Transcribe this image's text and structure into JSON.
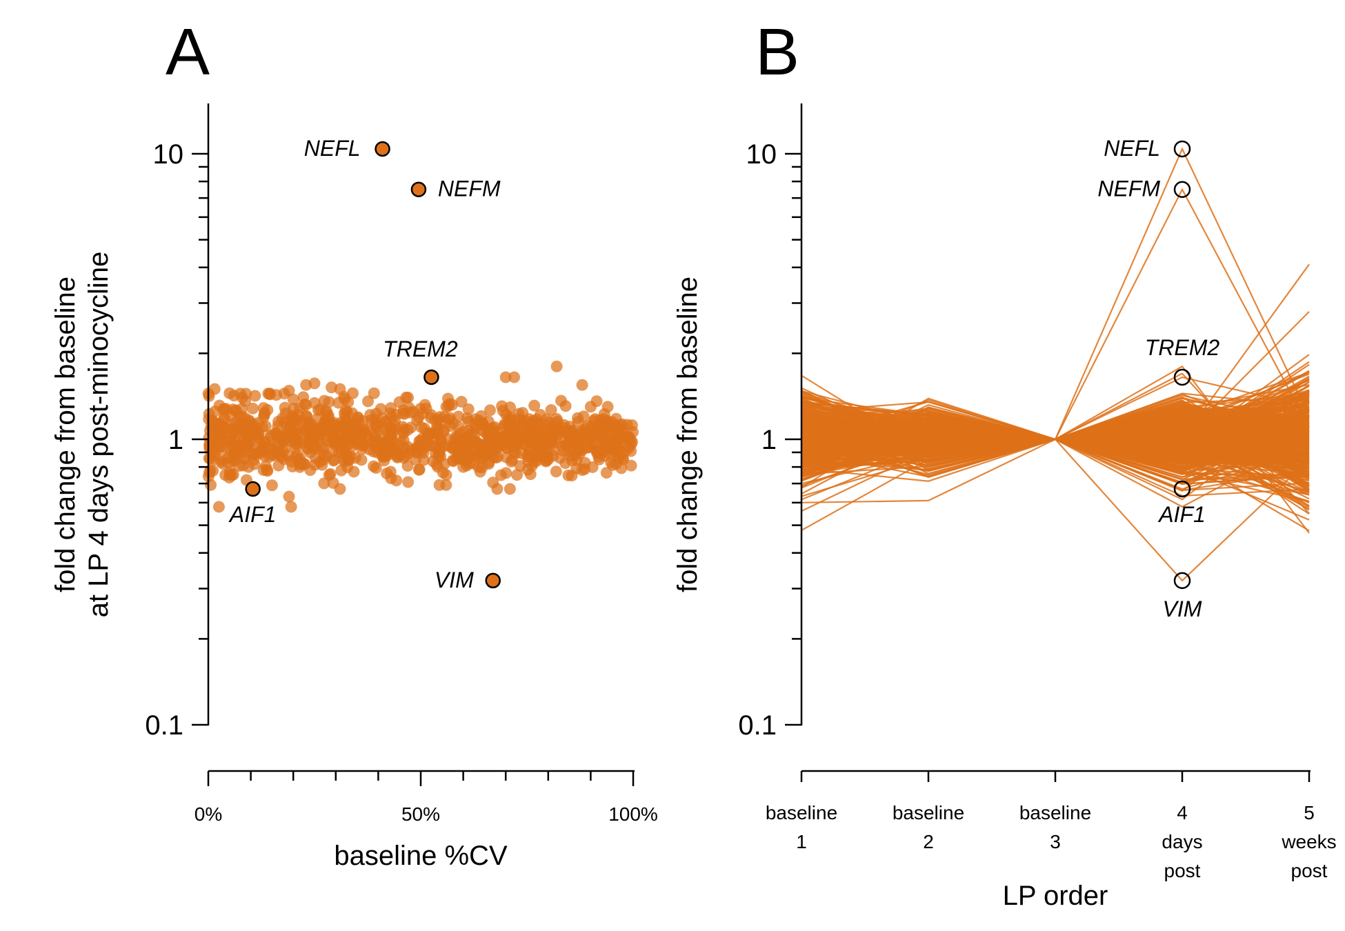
{
  "chart_data": [
    {
      "panel_letter": "A",
      "type": "scatter",
      "xlabel": "baseline %CV",
      "ylabel_lines": [
        "fold change from baseline",
        "at LP 4 days post-minocycline"
      ],
      "yscale": "log",
      "ylim": [
        0.1,
        15
      ],
      "yticks": [
        0.1,
        1,
        10
      ],
      "ytick_labels": [
        "0.1",
        "1",
        "10"
      ],
      "xlim": [
        0,
        100
      ],
      "xticks": [
        0,
        10,
        20,
        30,
        40,
        50,
        60,
        70,
        80,
        90,
        100
      ],
      "xtick_labels": [
        {
          "x": 0,
          "label": "0%"
        },
        {
          "x": 50,
          "label": "50%"
        },
        {
          "x": 100,
          "label": "100%"
        }
      ],
      "color": "#de7119",
      "labeled_points": [
        {
          "gene": "NEFL",
          "x": 41,
          "y": 10.4
        },
        {
          "gene": "NEFM",
          "x": 49.5,
          "y": 7.5
        },
        {
          "gene": "TREM2",
          "x": 52.5,
          "y": 1.65
        },
        {
          "gene": "AIF1",
          "x": 10.5,
          "y": 0.67
        },
        {
          "gene": "VIM",
          "x": 67,
          "y": 0.32
        }
      ],
      "outlier_points": [
        {
          "x": 1.5,
          "y": 1.5
        },
        {
          "x": 5,
          "y": 1.45
        },
        {
          "x": 8,
          "y": 1.4
        },
        {
          "x": 11,
          "y": 1.42
        },
        {
          "x": 16,
          "y": 1.43
        },
        {
          "x": 19,
          "y": 1.48
        },
        {
          "x": 20,
          "y": 1.38
        },
        {
          "x": 23,
          "y": 1.32
        },
        {
          "x": 25,
          "y": 1.34
        },
        {
          "x": 23,
          "y": 1.55
        },
        {
          "x": 25,
          "y": 1.57
        },
        {
          "x": 29,
          "y": 1.52
        },
        {
          "x": 31,
          "y": 1.5
        },
        {
          "x": 34,
          "y": 1.45
        },
        {
          "x": 39,
          "y": 1.45
        },
        {
          "x": 45,
          "y": 1.35
        },
        {
          "x": 47,
          "y": 1.4
        },
        {
          "x": 51,
          "y": 1.32
        },
        {
          "x": 56,
          "y": 1.3
        },
        {
          "x": 70,
          "y": 1.65
        },
        {
          "x": 72,
          "y": 1.65
        },
        {
          "x": 82,
          "y": 1.8
        },
        {
          "x": 88,
          "y": 1.55
        },
        {
          "x": 90,
          "y": 1.3
        },
        {
          "x": 94,
          "y": 1.3
        },
        {
          "x": 95,
          "y": 1.15
        },
        {
          "x": 96,
          "y": 1.18
        },
        {
          "x": 2.5,
          "y": 0.58
        },
        {
          "x": 9,
          "y": 0.72
        },
        {
          "x": 15,
          "y": 0.69
        },
        {
          "x": 19,
          "y": 0.63
        },
        {
          "x": 19.5,
          "y": 0.58
        },
        {
          "x": 31,
          "y": 0.67
        },
        {
          "x": 43,
          "y": 0.73
        },
        {
          "x": 60,
          "y": 0.8
        },
        {
          "x": 66,
          "y": 0.82
        },
        {
          "x": 68,
          "y": 0.67
        },
        {
          "x": 71,
          "y": 0.67
        },
        {
          "x": 80,
          "y": 0.85
        },
        {
          "x": 88,
          "y": 0.78
        },
        {
          "x": 92,
          "y": 0.85
        },
        {
          "x": 96,
          "y": 0.82
        },
        {
          "x": 4,
          "y": 0.75
        },
        {
          "x": 13,
          "y": 0.78
        },
        {
          "x": 24,
          "y": 0.78
        },
        {
          "x": 56,
          "y": 0.75
        },
        {
          "x": 64,
          "y": 0.77
        }
      ],
      "bulk": {
        "n_points": 1000,
        "center": 1.0,
        "spread_log10": 0.055
      }
    },
    {
      "panel_letter": "B",
      "type": "line",
      "xlabel": "LP order",
      "ylabel": "fold change from baseline",
      "yscale": "log",
      "ylim": [
        0.1,
        15
      ],
      "yticks": [
        0.1,
        1,
        10
      ],
      "ytick_labels": [
        "0.1",
        "1",
        "10"
      ],
      "categories": [
        [
          "baseline",
          "1"
        ],
        [
          "baseline",
          "2"
        ],
        [
          "baseline",
          "3"
        ],
        [
          "4",
          "days",
          "post"
        ],
        [
          "5",
          "weeks",
          "post"
        ]
      ],
      "color": "#de7119",
      "highlighted_at_category_index": 3,
      "highlighted": [
        {
          "gene": "NEFL",
          "values": [
            1.0,
            0.98,
            1.0,
            10.4,
            1.2
          ]
        },
        {
          "gene": "NEFM",
          "values": [
            0.97,
            1.0,
            1.0,
            7.5,
            1.1
          ]
        },
        {
          "gene": "TREM2",
          "values": [
            1.05,
            0.95,
            1.0,
            1.65,
            1.3
          ]
        },
        {
          "gene": "AIF1",
          "values": [
            0.9,
            1.05,
            1.0,
            0.67,
            0.9
          ]
        },
        {
          "gene": "VIM",
          "values": [
            1.1,
            0.95,
            1.0,
            0.32,
            0.85
          ]
        }
      ],
      "extreme_lines": [
        {
          "values": [
            0.48,
            0.85,
            1.0,
            1.0,
            4.1
          ]
        },
        {
          "values": [
            0.6,
            0.61,
            1.0,
            1.0,
            2.8
          ]
        },
        {
          "values": [
            1.35,
            1.2,
            1.0,
            1.8,
            0.47
          ]
        },
        {
          "values": [
            0.8,
            1.2,
            1.0,
            1.7,
            0.55
          ]
        },
        {
          "values": [
            1.25,
            1.35,
            1.0,
            0.58,
            1.0
          ]
        }
      ],
      "bulk": {
        "n_lines": 420,
        "spread_log10": [
          0.08,
          0.05,
          0.0,
          0.07,
          0.1
        ]
      }
    }
  ]
}
